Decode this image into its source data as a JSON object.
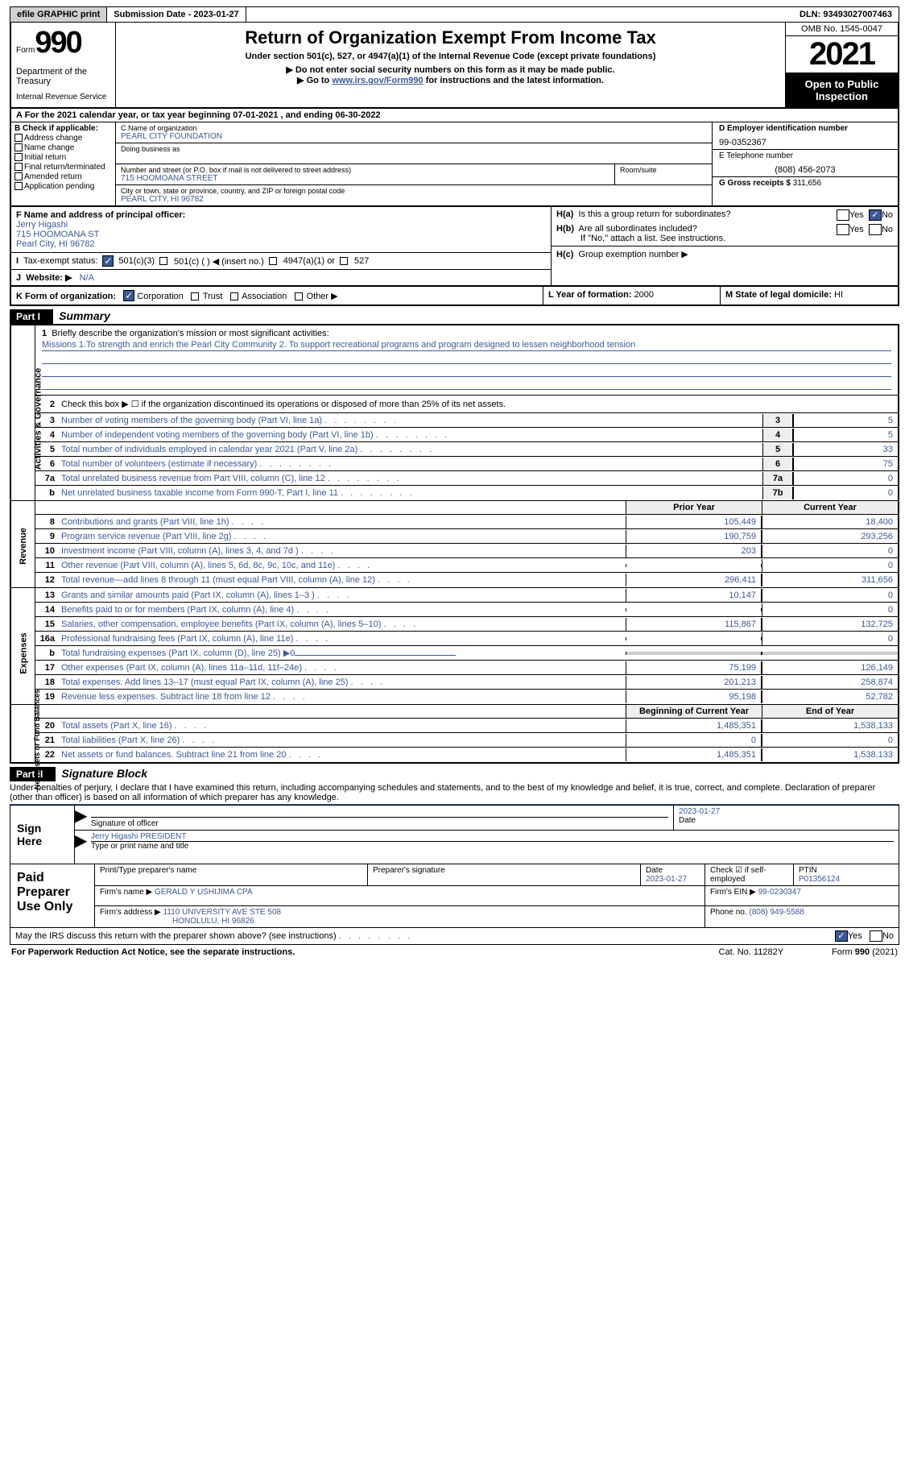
{
  "topbar": {
    "efile": "efile GRAPHIC print",
    "subdate_label": "Submission Date - ",
    "subdate": "2023-01-27",
    "dln_label": "DLN: ",
    "dln": "93493027007463"
  },
  "header": {
    "form_word": "Form",
    "form_num": "990",
    "dept": "Department of the Treasury",
    "irs": "Internal Revenue Service",
    "main_title": "Return of Organization Exempt From Income Tax",
    "subtitle": "Under section 501(c), 527, or 4947(a)(1) of the Internal Revenue Code (except private foundations)",
    "instr1": "▶ Do not enter social security numbers on this form as it may be made public.",
    "instr2_pre": "▶ Go to ",
    "instr2_link": "www.irs.gov/Form990",
    "instr2_post": " for instructions and the latest information.",
    "omb": "OMB No. 1545-0047",
    "year": "2021",
    "open_public": "Open to Public Inspection"
  },
  "fiscal": {
    "prefix": "A For the 2021 calendar year, or tax year beginning ",
    "begin": "07-01-2021",
    "mid": " , and ending ",
    "end": "06-30-2022"
  },
  "boxB": {
    "header": "B Check if applicable:",
    "items": [
      "Address change",
      "Name change",
      "Initial return",
      "Final return/terminated",
      "Amended return",
      "Application pending"
    ]
  },
  "boxC": {
    "name_label": "C Name of organization",
    "name": "PEARL CITY FOUNDATION",
    "dba_label": "Doing business as",
    "addr_label": "Number and street (or P.O. box if mail is not delivered to street address)",
    "addr": "715 HOOMOANA STREET",
    "suite_label": "Room/suite",
    "city_label": "City or town, state or province, country, and ZIP or foreign postal code",
    "city": "PEARL CITY, HI  96782"
  },
  "boxDE": {
    "d_label": "D Employer identification number",
    "d_val": "99-0352367",
    "e_label": "E Telephone number",
    "e_val": "(808) 456-2073",
    "g_label": "G Gross receipts $ ",
    "g_val": "311,656"
  },
  "boxF": {
    "label": "F Name and address of principal officer:",
    "name": "Jerry Higashi",
    "addr1": "715 HOOMOANA ST",
    "addr2": "Pearl City, HI  96782"
  },
  "boxH": {
    "ha_label": "H(a)",
    "ha_text": "Is this a group return for subordinates?",
    "hb_label": "H(b)",
    "hb_text": "Are all subordinates included?",
    "hb_note": "If \"No,\" attach a list. See instructions.",
    "hc_label": "H(c)",
    "hc_text": "Group exemption number ▶",
    "yes": "Yes",
    "no": "No"
  },
  "rowI": {
    "label": "I",
    "text": "Tax-exempt status:",
    "opt1": "501(c)(3)",
    "opt2": "501(c) (  ) ◀ (insert no.)",
    "opt3": "4947(a)(1) or",
    "opt4": "527"
  },
  "rowJ": {
    "label": "J",
    "prefix": "Website: ▶",
    "val": "N/A"
  },
  "rowK": {
    "label": "K Form of organization:",
    "opts": [
      "Corporation",
      "Trust",
      "Association",
      "Other ▶"
    ]
  },
  "rowL": {
    "label": "L Year of formation: ",
    "val": "2000"
  },
  "rowM": {
    "label": "M State of legal domicile: ",
    "val": "HI"
  },
  "partI": {
    "num": "Part I",
    "title": "Summary"
  },
  "mission": {
    "num": "1",
    "label": "Briefly describe the organization's mission or most significant activities:",
    "text": "Missions 1.To strength and enrich the Pearl City Community 2. To support recreational programs and program designed to lessen neighborhood tension"
  },
  "side_labels": {
    "activities": "Activities & Governance",
    "revenue": "Revenue",
    "expenses": "Expenses",
    "netassets": "Net Assets or Fund Balances"
  },
  "lines_top": [
    {
      "n": "2",
      "t": "Check this box ▶ ☐ if the organization discontinued its operations or disposed of more than 25% of its net assets."
    },
    {
      "n": "3",
      "t": "Number of voting members of the governing body (Part VI, line 1a)",
      "box": "3",
      "v": "5"
    },
    {
      "n": "4",
      "t": "Number of independent voting members of the governing body (Part VI, line 1b)",
      "box": "4",
      "v": "5"
    },
    {
      "n": "5",
      "t": "Total number of individuals employed in calendar year 2021 (Part V, line 2a)",
      "box": "5",
      "v": "33"
    },
    {
      "n": "6",
      "t": "Total number of volunteers (estimate if necessary)",
      "box": "6",
      "v": "75"
    },
    {
      "n": "7a",
      "t": "Total unrelated business revenue from Part VIII, column (C), line 12",
      "box": "7a",
      "v": "0"
    },
    {
      "n": "b",
      "t": "Net unrelated business taxable income from Form 990-T, Part I, line 11",
      "box": "7b",
      "v": "0"
    }
  ],
  "year_hdrs": {
    "prior": "Prior Year",
    "current": "Current Year"
  },
  "revenue_lines": [
    {
      "n": "8",
      "t": "Contributions and grants (Part VIII, line 1h)",
      "p": "105,449",
      "c": "18,400"
    },
    {
      "n": "9",
      "t": "Program service revenue (Part VIII, line 2g)",
      "p": "190,759",
      "c": "293,256"
    },
    {
      "n": "10",
      "t": "Investment income (Part VIII, column (A), lines 3, 4, and 7d )",
      "p": "203",
      "c": "0"
    },
    {
      "n": "11",
      "t": "Other revenue (Part VIII, column (A), lines 5, 6d, 8c, 9c, 10c, and 11e)",
      "p": "",
      "c": "0"
    },
    {
      "n": "12",
      "t": "Total revenue—add lines 8 through 11 (must equal Part VIII, column (A), line 12)",
      "p": "296,411",
      "c": "311,656"
    }
  ],
  "expense_lines": [
    {
      "n": "13",
      "t": "Grants and similar amounts paid (Part IX, column (A), lines 1–3 )",
      "p": "10,147",
      "c": "0"
    },
    {
      "n": "14",
      "t": "Benefits paid to or for members (Part IX, column (A), line 4)",
      "p": "",
      "c": "0"
    },
    {
      "n": "15",
      "t": "Salaries, other compensation, employee benefits (Part IX, column (A), lines 5–10)",
      "p": "115,867",
      "c": "132,725"
    },
    {
      "n": "16a",
      "t": "Professional fundraising fees (Part IX, column (A), line 11e)",
      "p": "",
      "c": "0"
    },
    {
      "n": "b",
      "t": "Total fundraising expenses (Part IX, column (D), line 25) ▶0",
      "gray": true
    },
    {
      "n": "17",
      "t": "Other expenses (Part IX, column (A), lines 11a–11d, 11f–24e)",
      "p": "75,199",
      "c": "126,149"
    },
    {
      "n": "18",
      "t": "Total expenses. Add lines 13–17 (must equal Part IX, column (A), line 25)",
      "p": "201,213",
      "c": "258,874"
    },
    {
      "n": "19",
      "t": "Revenue less expenses. Subtract line 18 from line 12",
      "p": "95,198",
      "c": "52,782"
    }
  ],
  "net_hdrs": {
    "begin": "Beginning of Current Year",
    "end": "End of Year"
  },
  "net_lines": [
    {
      "n": "20",
      "t": "Total assets (Part X, line 16)",
      "p": "1,485,351",
      "c": "1,538,133"
    },
    {
      "n": "21",
      "t": "Total liabilities (Part X, line 26)",
      "p": "0",
      "c": "0"
    },
    {
      "n": "22",
      "t": "Net assets or fund balances. Subtract line 21 from line 20",
      "p": "1,485,351",
      "c": "1,538,133"
    }
  ],
  "partII": {
    "num": "Part II",
    "title": "Signature Block"
  },
  "sig_intro": "Under penalties of perjury, I declare that I have examined this return, including accompanying schedules and statements, and to the best of my knowledge and belief, it is true, correct, and complete. Declaration of preparer (other than officer) is based on all information of which preparer has any knowledge.",
  "sign_here": "Sign Here",
  "sig_labels": {
    "sig_officer": "Signature of officer",
    "date": "Date",
    "sig_date_val": "2023-01-27",
    "name_title": "Type or print name and title",
    "name_val": "Jerry Higashi PRESIDENT"
  },
  "paid_prep": "Paid Preparer Use Only",
  "prep": {
    "name_lbl": "Print/Type preparer's name",
    "sig_lbl": "Preparer's signature",
    "date_lbl": "Date",
    "date_val": "2023-01-27",
    "self_lbl": "Check ☑ if self-employed",
    "ptin_lbl": "PTIN",
    "ptin_val": "P01356124",
    "firm_name_lbl": "Firm's name    ▶ ",
    "firm_name": "GERALD Y USHIJIMA CPA",
    "firm_ein_lbl": "Firm's EIN ▶ ",
    "firm_ein": "99-0230347",
    "firm_addr_lbl": "Firm's address ▶ ",
    "firm_addr1": "1110 UNIVERSITY AVE STE 508",
    "firm_addr2": "HONOLULU, HI  96826",
    "phone_lbl": "Phone no. ",
    "phone": "(808) 949-5588"
  },
  "discuss": {
    "text": "May the IRS discuss this return with the preparer shown above? (see instructions)",
    "yes": "Yes",
    "no": "No"
  },
  "footer": {
    "left": "For Paperwork Reduction Act Notice, see the separate instructions.",
    "mid": "Cat. No. 11282Y",
    "right": "Form 990 (2021)"
  }
}
